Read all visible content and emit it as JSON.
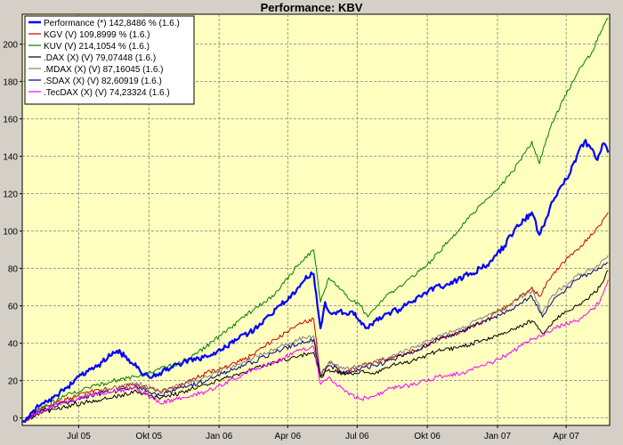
{
  "chart_data": {
    "type": "line",
    "title": "Performance: KBV",
    "xlabel": "",
    "ylabel": "",
    "ylim": [
      -4,
      216
    ],
    "x_range": [
      "2005-04-18",
      "2007-05-28"
    ],
    "y_ticks": [
      0,
      20,
      40,
      60,
      80,
      100,
      120,
      140,
      160,
      180,
      200
    ],
    "x_ticks": [
      {
        "label": "Jul 05",
        "date": "2005-07-01"
      },
      {
        "label": "Okt 05",
        "date": "2005-10-01"
      },
      {
        "label": "Jan 06",
        "date": "2006-01-01"
      },
      {
        "label": "Apr 06",
        "date": "2006-04-01"
      },
      {
        "label": "Jul 06",
        "date": "2006-07-01"
      },
      {
        "label": "Okt 06",
        "date": "2006-10-01"
      },
      {
        "label": "Jan 07",
        "date": "2007-01-01"
      },
      {
        "label": "Apr 07",
        "date": "2007-04-01"
      }
    ],
    "grid": true,
    "legend_position": "top-left",
    "plot_background": "#ffffc0",
    "series": [
      {
        "name": "Performance (*) 142,8486 % (1.6.)",
        "color": "#0000ff",
        "width": 2.2,
        "points": [
          [
            "2005-04-18",
            -2
          ],
          [
            "2005-05-01",
            3
          ],
          [
            "2005-05-15",
            8
          ],
          [
            "2005-06-01",
            12
          ],
          [
            "2005-06-15",
            16
          ],
          [
            "2005-07-01",
            22
          ],
          [
            "2005-07-20",
            26
          ],
          [
            "2005-08-01",
            30
          ],
          [
            "2005-08-20",
            36
          ],
          [
            "2005-09-01",
            33
          ],
          [
            "2005-09-15",
            27
          ],
          [
            "2005-10-01",
            22
          ],
          [
            "2005-10-15",
            24
          ],
          [
            "2005-11-01",
            27
          ],
          [
            "2005-11-15",
            30
          ],
          [
            "2005-12-01",
            31
          ],
          [
            "2005-12-20",
            33
          ],
          [
            "2006-01-10",
            38
          ],
          [
            "2006-01-25",
            42
          ],
          [
            "2006-02-10",
            46
          ],
          [
            "2006-02-25",
            50
          ],
          [
            "2006-03-10",
            55
          ],
          [
            "2006-03-20",
            60
          ],
          [
            "2006-04-01",
            63
          ],
          [
            "2006-04-15",
            70
          ],
          [
            "2006-04-25",
            76
          ],
          [
            "2006-05-05",
            77
          ],
          [
            "2006-05-10",
            60
          ],
          [
            "2006-05-14",
            48
          ],
          [
            "2006-05-20",
            62
          ],
          [
            "2006-05-27",
            56
          ],
          [
            "2006-06-05",
            57
          ],
          [
            "2006-06-15",
            56
          ],
          [
            "2006-06-25",
            57
          ],
          [
            "2006-07-05",
            52
          ],
          [
            "2006-07-12",
            48
          ],
          [
            "2006-07-25",
            52
          ],
          [
            "2006-08-10",
            56
          ],
          [
            "2006-08-25",
            58
          ],
          [
            "2006-09-10",
            62
          ],
          [
            "2006-09-25",
            66
          ],
          [
            "2006-10-10",
            70
          ],
          [
            "2006-10-25",
            71
          ],
          [
            "2006-11-10",
            74
          ],
          [
            "2006-11-25",
            77
          ],
          [
            "2006-12-10",
            80
          ],
          [
            "2006-12-25",
            84
          ],
          [
            "2007-01-10",
            92
          ],
          [
            "2007-01-25",
            102
          ],
          [
            "2007-02-05",
            106
          ],
          [
            "2007-02-15",
            110
          ],
          [
            "2007-02-25",
            98
          ],
          [
            "2007-03-05",
            106
          ],
          [
            "2007-03-15",
            116
          ],
          [
            "2007-03-25",
            124
          ],
          [
            "2007-04-05",
            130
          ],
          [
            "2007-04-15",
            140
          ],
          [
            "2007-04-25",
            148
          ],
          [
            "2007-05-05",
            144
          ],
          [
            "2007-05-12",
            138
          ],
          [
            "2007-05-20",
            147
          ],
          [
            "2007-05-26",
            142
          ]
        ]
      },
      {
        "name": "KGV (V) 109,8999 % (1.6.)",
        "color": "#cc0000",
        "width": 1,
        "points": [
          [
            "2005-04-18",
            -2
          ],
          [
            "2005-05-15",
            6
          ],
          [
            "2005-06-15",
            10
          ],
          [
            "2005-07-15",
            14
          ],
          [
            "2005-08-15",
            16
          ],
          [
            "2005-09-15",
            18
          ],
          [
            "2005-10-15",
            14
          ],
          [
            "2005-11-15",
            18
          ],
          [
            "2005-12-15",
            24
          ],
          [
            "2006-01-15",
            28
          ],
          [
            "2006-02-15",
            34
          ],
          [
            "2006-03-15",
            42
          ],
          [
            "2006-04-15",
            50
          ],
          [
            "2006-05-05",
            53
          ],
          [
            "2006-05-14",
            22
          ],
          [
            "2006-05-25",
            30
          ],
          [
            "2006-06-15",
            24
          ],
          [
            "2006-07-05",
            28
          ],
          [
            "2006-07-25",
            30
          ],
          [
            "2006-08-15",
            32
          ],
          [
            "2006-09-15",
            36
          ],
          [
            "2006-10-15",
            42
          ],
          [
            "2006-11-15",
            46
          ],
          [
            "2006-12-15",
            52
          ],
          [
            "2007-01-15",
            60
          ],
          [
            "2007-02-15",
            70
          ],
          [
            "2007-02-25",
            65
          ],
          [
            "2007-03-10",
            74
          ],
          [
            "2007-03-25",
            82
          ],
          [
            "2007-04-15",
            90
          ],
          [
            "2007-05-05",
            98
          ],
          [
            "2007-05-15",
            103
          ],
          [
            "2007-05-26",
            110
          ]
        ]
      },
      {
        "name": "KUV (V) 214,1054 % (1.6.)",
        "color": "#008000",
        "width": 1,
        "points": [
          [
            "2005-04-18",
            -2
          ],
          [
            "2005-05-15",
            6
          ],
          [
            "2005-06-15",
            12
          ],
          [
            "2005-07-15",
            16
          ],
          [
            "2005-08-15",
            20
          ],
          [
            "2005-09-15",
            22
          ],
          [
            "2005-10-15",
            26
          ],
          [
            "2005-11-15",
            30
          ],
          [
            "2005-12-15",
            38
          ],
          [
            "2006-01-15",
            48
          ],
          [
            "2006-02-15",
            58
          ],
          [
            "2006-03-15",
            66
          ],
          [
            "2006-04-15",
            82
          ],
          [
            "2006-05-05",
            90
          ],
          [
            "2006-05-14",
            62
          ],
          [
            "2006-05-25",
            75
          ],
          [
            "2006-06-15",
            66
          ],
          [
            "2006-07-05",
            60
          ],
          [
            "2006-07-15",
            54
          ],
          [
            "2006-08-05",
            64
          ],
          [
            "2006-09-01",
            72
          ],
          [
            "2006-10-01",
            82
          ],
          [
            "2006-11-01",
            96
          ],
          [
            "2006-12-01",
            110
          ],
          [
            "2007-01-01",
            122
          ],
          [
            "2007-02-01",
            138
          ],
          [
            "2007-02-15",
            148
          ],
          [
            "2007-02-25",
            136
          ],
          [
            "2007-03-10",
            154
          ],
          [
            "2007-03-25",
            168
          ],
          [
            "2007-04-15",
            184
          ],
          [
            "2007-05-05",
            196
          ],
          [
            "2007-05-20",
            210
          ],
          [
            "2007-05-26",
            214
          ]
        ]
      },
      {
        "name": ".DAX (X) (V) 79,07448 (1.6.)",
        "color": "#000000",
        "width": 1,
        "points": [
          [
            "2005-04-18",
            -2
          ],
          [
            "2005-05-15",
            3
          ],
          [
            "2005-06-15",
            6
          ],
          [
            "2005-07-15",
            9
          ],
          [
            "2005-08-15",
            11
          ],
          [
            "2005-09-15",
            14
          ],
          [
            "2005-10-15",
            10
          ],
          [
            "2005-11-15",
            14
          ],
          [
            "2005-12-15",
            18
          ],
          [
            "2006-01-15",
            22
          ],
          [
            "2006-02-15",
            26
          ],
          [
            "2006-03-15",
            30
          ],
          [
            "2006-04-15",
            33
          ],
          [
            "2006-05-05",
            35
          ],
          [
            "2006-05-14",
            22
          ],
          [
            "2006-05-25",
            26
          ],
          [
            "2006-06-15",
            23
          ],
          [
            "2006-07-05",
            25
          ],
          [
            "2006-07-25",
            24
          ],
          [
            "2006-08-15",
            28
          ],
          [
            "2006-09-15",
            31
          ],
          [
            "2006-10-15",
            36
          ],
          [
            "2006-11-15",
            38
          ],
          [
            "2006-12-15",
            42
          ],
          [
            "2007-01-15",
            46
          ],
          [
            "2007-02-15",
            52
          ],
          [
            "2007-03-01",
            45
          ],
          [
            "2007-03-15",
            52
          ],
          [
            "2007-04-15",
            60
          ],
          [
            "2007-05-05",
            66
          ],
          [
            "2007-05-15",
            70
          ],
          [
            "2007-05-26",
            79
          ]
        ]
      },
      {
        "name": ".MDAX (X) (V) 87,16045 (1.6.)",
        "color": "#808080",
        "width": 1,
        "points": [
          [
            "2005-04-18",
            -2
          ],
          [
            "2005-05-15",
            5
          ],
          [
            "2005-06-15",
            9
          ],
          [
            "2005-07-15",
            13
          ],
          [
            "2005-08-15",
            16
          ],
          [
            "2005-09-15",
            19
          ],
          [
            "2005-10-15",
            14
          ],
          [
            "2005-11-15",
            18
          ],
          [
            "2005-12-15",
            22
          ],
          [
            "2006-01-15",
            27
          ],
          [
            "2006-02-15",
            32
          ],
          [
            "2006-03-15",
            37
          ],
          [
            "2006-04-15",
            42
          ],
          [
            "2006-05-05",
            44
          ],
          [
            "2006-05-14",
            24
          ],
          [
            "2006-05-25",
            30
          ],
          [
            "2006-06-15",
            26
          ],
          [
            "2006-07-05",
            28
          ],
          [
            "2006-07-25",
            30
          ],
          [
            "2006-08-15",
            33
          ],
          [
            "2006-09-15",
            38
          ],
          [
            "2006-10-15",
            44
          ],
          [
            "2006-11-15",
            48
          ],
          [
            "2006-12-15",
            54
          ],
          [
            "2007-01-15",
            60
          ],
          [
            "2007-02-15",
            68
          ],
          [
            "2007-03-01",
            56
          ],
          [
            "2007-03-15",
            66
          ],
          [
            "2007-04-15",
            76
          ],
          [
            "2007-05-05",
            80
          ],
          [
            "2007-05-15",
            82
          ],
          [
            "2007-05-26",
            87
          ]
        ]
      },
      {
        "name": ".SDAX (X) (V) 82,60919 (1.6.)",
        "color": "#000080",
        "width": 1,
        "points": [
          [
            "2005-04-18",
            -2
          ],
          [
            "2005-05-15",
            4
          ],
          [
            "2005-06-15",
            8
          ],
          [
            "2005-07-15",
            12
          ],
          [
            "2005-08-15",
            14
          ],
          [
            "2005-09-15",
            17
          ],
          [
            "2005-10-15",
            12
          ],
          [
            "2005-11-15",
            16
          ],
          [
            "2005-12-15",
            20
          ],
          [
            "2006-01-15",
            25
          ],
          [
            "2006-02-15",
            30
          ],
          [
            "2006-03-15",
            35
          ],
          [
            "2006-04-15",
            40
          ],
          [
            "2006-05-05",
            42
          ],
          [
            "2006-05-14",
            22
          ],
          [
            "2006-05-25",
            28
          ],
          [
            "2006-06-15",
            24
          ],
          [
            "2006-07-05",
            26
          ],
          [
            "2006-07-25",
            28
          ],
          [
            "2006-08-15",
            31
          ],
          [
            "2006-09-15",
            36
          ],
          [
            "2006-10-15",
            42
          ],
          [
            "2006-11-15",
            46
          ],
          [
            "2006-12-15",
            52
          ],
          [
            "2007-01-15",
            57
          ],
          [
            "2007-02-15",
            65
          ],
          [
            "2007-03-01",
            54
          ],
          [
            "2007-03-15",
            63
          ],
          [
            "2007-04-15",
            74
          ],
          [
            "2007-05-05",
            78
          ],
          [
            "2007-05-15",
            80
          ],
          [
            "2007-05-26",
            83
          ]
        ]
      },
      {
        "name": ".TecDAX (X) (V) 74,23324 (1.6.)",
        "color": "#ff00ff",
        "width": 1,
        "points": [
          [
            "2005-04-18",
            -2
          ],
          [
            "2005-05-15",
            4
          ],
          [
            "2005-06-15",
            9
          ],
          [
            "2005-07-15",
            12
          ],
          [
            "2005-08-15",
            14
          ],
          [
            "2005-09-15",
            16
          ],
          [
            "2005-10-15",
            8
          ],
          [
            "2005-11-15",
            11
          ],
          [
            "2005-12-15",
            14
          ],
          [
            "2006-01-15",
            20
          ],
          [
            "2006-02-15",
            26
          ],
          [
            "2006-03-15",
            30
          ],
          [
            "2006-04-15",
            36
          ],
          [
            "2006-05-05",
            38
          ],
          [
            "2006-05-14",
            18
          ],
          [
            "2006-05-25",
            22
          ],
          [
            "2006-06-15",
            14
          ],
          [
            "2006-07-05",
            10
          ],
          [
            "2006-07-25",
            12
          ],
          [
            "2006-08-15",
            16
          ],
          [
            "2006-09-15",
            18
          ],
          [
            "2006-10-15",
            22
          ],
          [
            "2006-11-15",
            24
          ],
          [
            "2006-12-15",
            28
          ],
          [
            "2007-01-15",
            34
          ],
          [
            "2007-02-15",
            42
          ],
          [
            "2007-03-01",
            44
          ],
          [
            "2007-03-15",
            48
          ],
          [
            "2007-04-15",
            52
          ],
          [
            "2007-05-05",
            58
          ],
          [
            "2007-05-15",
            62
          ],
          [
            "2007-05-26",
            74
          ]
        ]
      }
    ]
  }
}
